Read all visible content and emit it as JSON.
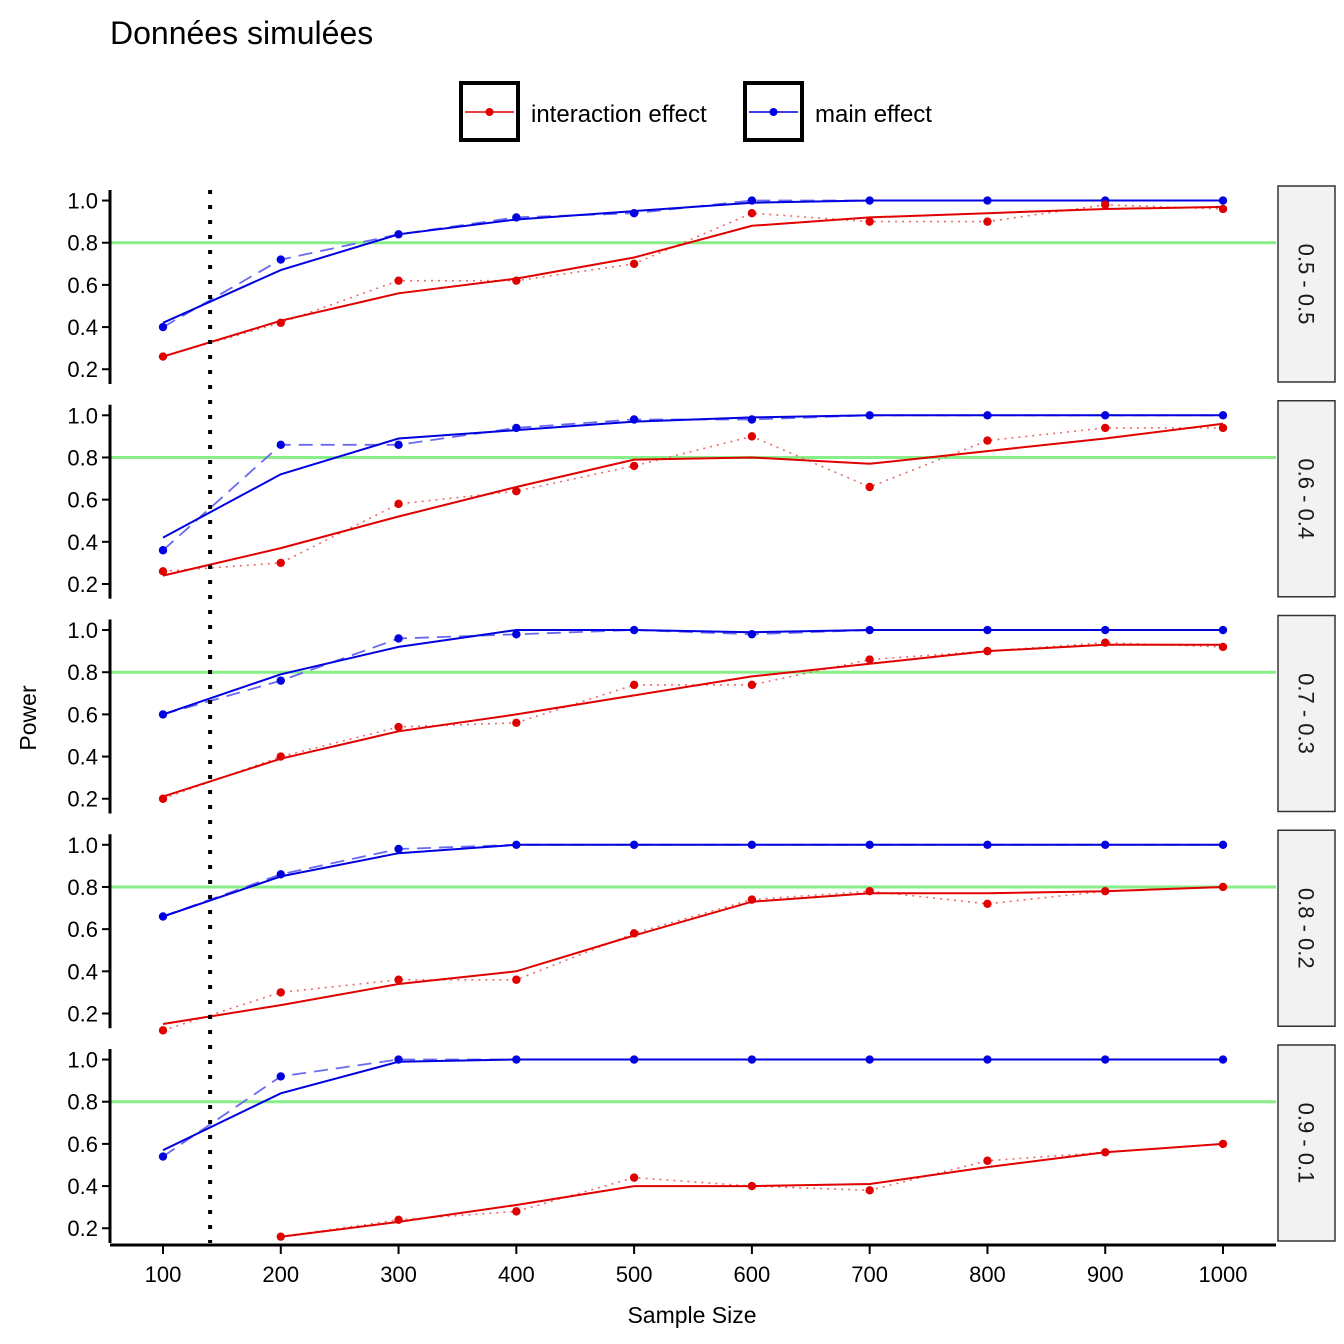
{
  "chart_data": {
    "type": "line",
    "title": "Données simulées",
    "xlabel": "Sample Size",
    "ylabel": "Power",
    "x": [
      100,
      200,
      300,
      400,
      500,
      600,
      700,
      800,
      900,
      1000
    ],
    "x_ticks": [
      "100",
      "200",
      "300",
      "400",
      "500",
      "600",
      "700",
      "800",
      "900",
      "1000"
    ],
    "y_ticks": [
      "0.2",
      "0.4",
      "0.6",
      "0.8",
      "1.0"
    ],
    "xlim": [
      55,
      1045
    ],
    "ylim": [
      0.13,
      1.05
    ],
    "reference_line_y": 0.8,
    "reference_line_x": 140,
    "legend_position": "top",
    "legend": [
      "interaction effect",
      "main effect"
    ],
    "colors": {
      "interaction": "#e00000",
      "main": "#0000e0",
      "reference": "#88ee88",
      "strip_fill": "#f2f2f2"
    },
    "panels": [
      {
        "label": "0.5 - 0.5",
        "interaction": [
          0.26,
          0.42,
          0.62,
          0.62,
          0.7,
          0.94,
          0.9,
          0.9,
          0.98,
          0.96
        ],
        "interaction_smooth": [
          0.26,
          0.43,
          0.56,
          0.63,
          0.73,
          0.88,
          0.92,
          0.94,
          0.96,
          0.97
        ],
        "main": [
          0.4,
          0.72,
          0.84,
          0.92,
          0.94,
          1.0,
          1.0,
          1.0,
          1.0,
          1.0
        ],
        "main_smooth": [
          0.42,
          0.67,
          0.84,
          0.91,
          0.95,
          0.99,
          1.0,
          1.0,
          1.0,
          1.0
        ]
      },
      {
        "label": "0.6 - 0.4",
        "interaction": [
          0.26,
          0.3,
          0.58,
          0.64,
          0.76,
          0.9,
          0.66,
          0.88,
          0.94,
          0.94
        ],
        "interaction_smooth": [
          0.24,
          0.37,
          0.52,
          0.66,
          0.79,
          0.8,
          0.77,
          0.83,
          0.89,
          0.96
        ],
        "main": [
          0.36,
          0.86,
          0.86,
          0.94,
          0.98,
          0.98,
          1.0,
          1.0,
          1.0,
          1.0
        ],
        "main_smooth": [
          0.42,
          0.72,
          0.89,
          0.93,
          0.97,
          0.99,
          1.0,
          1.0,
          1.0,
          1.0
        ]
      },
      {
        "label": "0.7 - 0.3",
        "interaction": [
          0.2,
          0.4,
          0.54,
          0.56,
          0.74,
          0.74,
          0.86,
          0.9,
          0.94,
          0.92
        ],
        "interaction_smooth": [
          0.21,
          0.39,
          0.52,
          0.6,
          0.69,
          0.78,
          0.84,
          0.9,
          0.93,
          0.93
        ],
        "main": [
          0.6,
          0.76,
          0.96,
          0.98,
          1.0,
          0.98,
          1.0,
          1.0,
          1.0,
          1.0
        ],
        "main_smooth": [
          0.6,
          0.79,
          0.92,
          1.0,
          1.0,
          0.99,
          1.0,
          1.0,
          1.0,
          1.0
        ]
      },
      {
        "label": "0.8 - 0.2",
        "interaction": [
          0.12,
          0.3,
          0.36,
          0.36,
          0.58,
          0.74,
          0.78,
          0.72,
          0.78,
          0.8
        ],
        "interaction_smooth": [
          0.15,
          0.24,
          0.34,
          0.4,
          0.57,
          0.73,
          0.77,
          0.77,
          0.78,
          0.8
        ],
        "main": [
          0.66,
          0.86,
          0.98,
          1.0,
          1.0,
          1.0,
          1.0,
          1.0,
          1.0,
          1.0
        ],
        "main_smooth": [
          0.66,
          0.85,
          0.96,
          1.0,
          1.0,
          1.0,
          1.0,
          1.0,
          1.0,
          1.0
        ]
      },
      {
        "label": "0.9 - 0.1",
        "interaction": [
          null,
          0.16,
          0.24,
          0.28,
          0.44,
          0.4,
          0.38,
          0.52,
          0.56,
          0.6
        ],
        "interaction_smooth": [
          null,
          0.16,
          0.23,
          0.31,
          0.4,
          0.4,
          0.41,
          0.49,
          0.56,
          0.6
        ],
        "main": [
          0.54,
          0.92,
          1.0,
          1.0,
          1.0,
          1.0,
          1.0,
          1.0,
          1.0,
          1.0
        ],
        "main_smooth": [
          0.57,
          0.84,
          0.99,
          1.0,
          1.0,
          1.0,
          1.0,
          1.0,
          1.0,
          1.0
        ]
      }
    ]
  }
}
